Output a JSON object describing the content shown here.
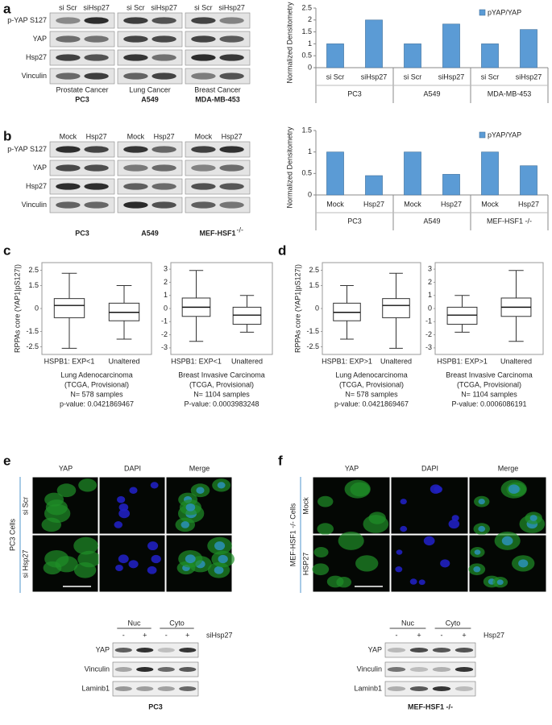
{
  "panels": {
    "letters": [
      "a",
      "b",
      "c",
      "d",
      "e",
      "f"
    ],
    "blot_a": {
      "rows": [
        "p-YAP S127",
        "YAP",
        "Hsp27",
        "Vinculin"
      ],
      "lanes": [
        "si Scr",
        "siHsp27",
        "si Scr",
        "siHsp27",
        "si Scr",
        "siHsp27"
      ],
      "tissues": [
        "Prostate Cancer",
        "Lung Cancer",
        "Breast Cancer"
      ],
      "cell_lines": [
        "PC3",
        "A549",
        "MDA-MB-453"
      ]
    },
    "blot_b": {
      "rows": [
        "p-YAP S127",
        "YAP",
        "Hsp27",
        "Vinculin"
      ],
      "lanes": [
        "Mock",
        "Hsp27",
        "Mock",
        "Hsp27",
        "Mock",
        "Hsp27"
      ],
      "cell_lines": [
        "PC3",
        "A549",
        "MEF-HSF1"
      ],
      "superscript": "-/-"
    },
    "micro_e": {
      "columns": [
        "YAP",
        "DAPI",
        "Merge"
      ],
      "rows": [
        "si Scr",
        "si Hsp27"
      ],
      "side_label": "PC3 Cells"
    },
    "micro_f": {
      "columns": [
        "YAP",
        "DAPI",
        "Merge"
      ],
      "rows": [
        "Mock",
        "HSP27"
      ],
      "side_label": "MEF-HSF1 -/- Cells"
    },
    "blot_e": {
      "fractions": [
        "Nuc",
        "Cyto"
      ],
      "signs": [
        "-",
        "+",
        "-",
        "+"
      ],
      "treatment": "siHsp27",
      "rows": [
        "YAP",
        "Vinculin",
        "Laminb1"
      ],
      "cell_line": "PC3"
    },
    "blot_f": {
      "fractions": [
        "Nuc",
        "Cyto"
      ],
      "signs": [
        "-",
        "+",
        "-",
        "+"
      ],
      "treatment": "Hsp27",
      "rows": [
        "YAP",
        "Vinculin",
        "Laminb1"
      ],
      "cell_line": "MEF-HSF1 -/-"
    }
  },
  "chart_data": [
    {
      "type": "bar",
      "y_label": "Normalized Densitometry",
      "categories": [
        "si Scr",
        "siHsp27",
        "si Scr",
        "siHsp27",
        "si Scr",
        "siHsp27"
      ],
      "groups": [
        "PC3",
        "A549",
        "MDA-MB-453"
      ],
      "series": [
        {
          "name": "pYAP/YAP",
          "color": "#5b9bd5",
          "values": [
            1,
            2,
            1,
            1.83,
            1,
            1.6
          ]
        }
      ],
      "ylim": [
        0,
        2.5
      ],
      "yticks": [
        0,
        0.5,
        1,
        1.5,
        2,
        2.5
      ],
      "legend": "top-right"
    },
    {
      "type": "bar",
      "y_label": "Normalized Densitometry",
      "categories": [
        "Mock",
        "Hsp27",
        "Mock",
        "Hsp27",
        "Mock",
        "Hsp27"
      ],
      "groups": [
        "PC3",
        "A549",
        "MEF-HSF1 -/-"
      ],
      "series": [
        {
          "name": "pYAP/YAP",
          "color": "#5b9bd5",
          "values": [
            1,
            0.45,
            1,
            0.48,
            1,
            0.68
          ]
        }
      ],
      "ylim": [
        0,
        1.5
      ],
      "yticks": [
        0,
        0.5,
        1,
        1.5
      ],
      "legend": "top-right"
    },
    {
      "type": "box",
      "y_label": "RPPAs core (YAP1|pS127|)",
      "categories": [
        "HSPB1: EXP<1",
        "Unaltered"
      ],
      "boxes": [
        {
          "whisker_low": -2.6,
          "q1": -0.6,
          "median": 0.2,
          "q3": 0.65,
          "whisker_high": 2.3
        },
        {
          "whisker_low": -2,
          "q1": -0.8,
          "median": -0.25,
          "q3": 0.35,
          "whisker_high": 1.5
        }
      ],
      "ylim": [
        -3,
        3
      ],
      "yticks": [
        -2.5,
        -1.5,
        0,
        1.5,
        2.5
      ],
      "caption": [
        "Lung Adenocarcinoma",
        "(TCGA, Provisional)",
        "N= 578 samples",
        "p-value: 0.0421869467"
      ]
    },
    {
      "type": "box",
      "categories": [
        "HSPB1: EXP<1",
        "Unaltered"
      ],
      "boxes": [
        {
          "whisker_low": -2.5,
          "q1": -0.6,
          "median": 0.1,
          "q3": 0.8,
          "whisker_high": 2.9
        },
        {
          "whisker_low": -1.8,
          "q1": -1.2,
          "median": -0.5,
          "q3": 0.1,
          "whisker_high": 1
        }
      ],
      "ylim": [
        -3.5,
        3.5
      ],
      "yticks": [
        -3,
        -2,
        -1,
        0,
        1,
        2,
        3
      ],
      "caption": [
        "Breast Invasive Carcinoma",
        "(TCGA, Provisional)",
        "N= 1104 samples",
        "P-value: 0.0003983248"
      ]
    },
    {
      "type": "box",
      "y_label": "RPPAs core (YAP1|pS127|)",
      "categories": [
        "HSPB1: EXP>1",
        "Unaltered"
      ],
      "boxes": [
        {
          "whisker_low": -2,
          "q1": -0.8,
          "median": -0.25,
          "q3": 0.35,
          "whisker_high": 1.5
        },
        {
          "whisker_low": -2.6,
          "q1": -0.6,
          "median": 0.2,
          "q3": 0.65,
          "whisker_high": 2.3
        }
      ],
      "ylim": [
        -3,
        3
      ],
      "yticks": [
        -2.5,
        -1.5,
        0,
        1.5,
        2.5
      ],
      "caption": [
        "Lung Adenocarcinoma",
        "(TCGA, Provisional)",
        "N= 578 samples",
        "p-value: 0.0421869467"
      ]
    },
    {
      "type": "box",
      "categories": [
        "HSPB1: EXP>1",
        "Unaltered"
      ],
      "boxes": [
        {
          "whisker_low": -1.8,
          "q1": -1.2,
          "median": -0.5,
          "q3": 0.1,
          "whisker_high": 1
        },
        {
          "whisker_low": -2.5,
          "q1": -0.6,
          "median": 0.1,
          "q3": 0.8,
          "whisker_high": 2.9
        }
      ],
      "ylim": [
        -3.5,
        3.5
      ],
      "yticks": [
        -3,
        -2,
        -1,
        0,
        1,
        2,
        3
      ],
      "caption": [
        "Breast Invasive Carcinoma",
        "(TCGA, Provisional)",
        "N= 1104 samples",
        "P-value: 0.0006086191"
      ]
    }
  ]
}
